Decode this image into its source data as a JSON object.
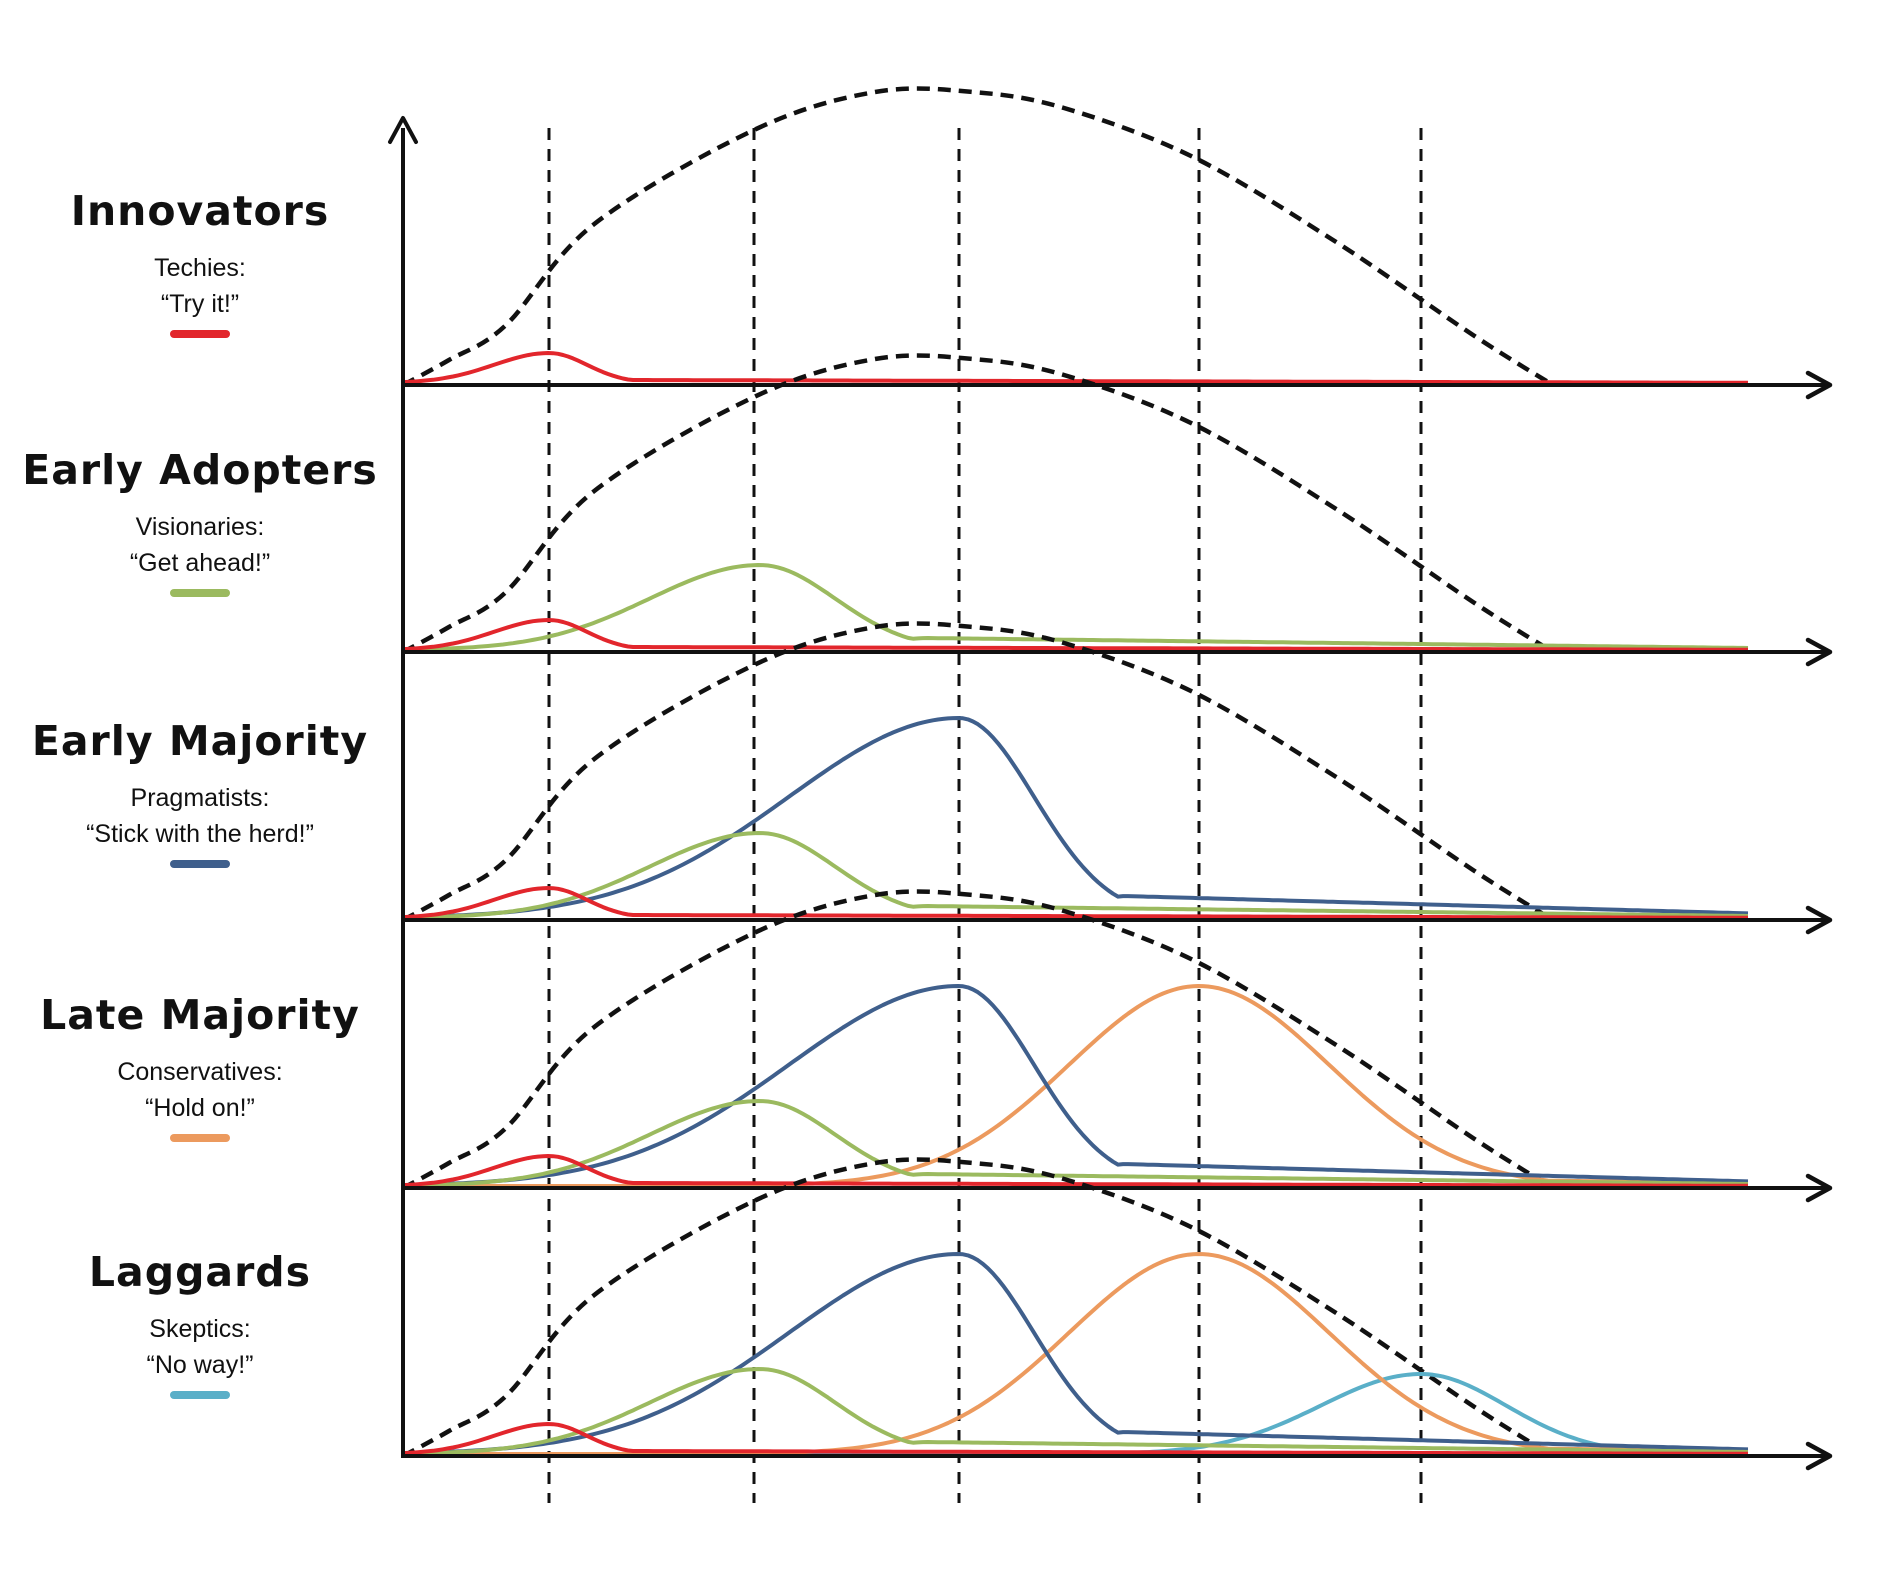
{
  "colors": {
    "innovators": "#e2262c",
    "early_adopters": "#9bba5f",
    "early_majority": "#3f5f8c",
    "late_majority": "#ec9a5e",
    "laggards": "#5aafc8",
    "envelope": "#111111",
    "axis": "#111111"
  },
  "panels": [
    {
      "title": "Innovators",
      "role": "Techies:",
      "quote": "“Try it!”",
      "color": "#e2262c"
    },
    {
      "title": "Early Adopters",
      "role": "Visionaries:",
      "quote": "“Get ahead!”",
      "color": "#9bba5f"
    },
    {
      "title": "Early Majority",
      "role": "Pragmatists:",
      "quote": "“Stick with the herd!”",
      "color": "#3f5f8c"
    },
    {
      "title": "Late Majority",
      "role": "Conservatives:",
      "quote": "“Hold on!”",
      "color": "#ec9a5e"
    },
    {
      "title": "Laggards",
      "role": "Skeptics:",
      "quote": "“No way!”",
      "color": "#5aafc8"
    }
  ]
}
